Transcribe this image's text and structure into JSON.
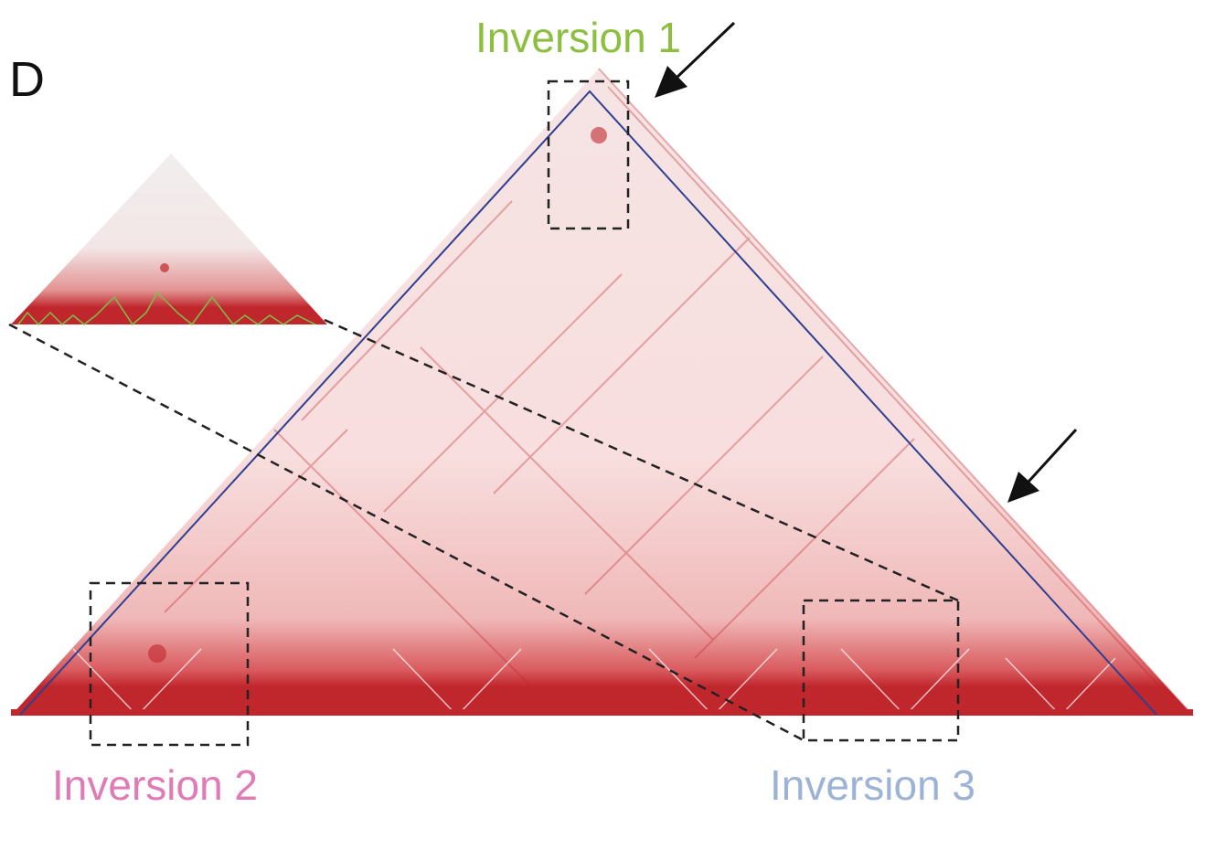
{
  "panel_label": "D",
  "labels": {
    "inversion1": "Inversion 1",
    "inversion2": "Inversion 2",
    "inversion3": "Inversion 3"
  },
  "colors": {
    "heatmap": "#c0272d",
    "boundary_line": "#2e3f8f",
    "inversion1": "#8cbf3f",
    "inversion2": "#e07bb5",
    "inversion3": "#9db3d6",
    "inset_tad_line": "#7cc04a"
  },
  "icons": [
    "arrow-icon",
    "arrow-icon"
  ]
}
